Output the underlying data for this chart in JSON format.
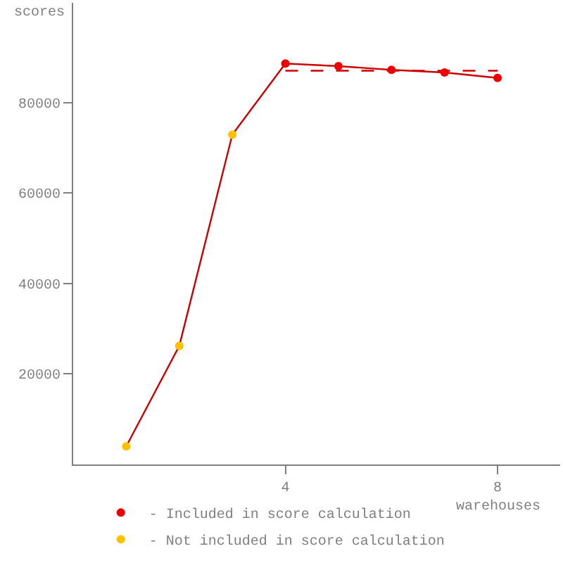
{
  "chart_data": {
    "type": "line",
    "xlabel": "warehouses",
    "ylabel": "scores",
    "xlim": [
      0,
      9.18
    ],
    "ylim": [
      0,
      102000
    ],
    "xticks": [
      4,
      8
    ],
    "yticks": [
      20000,
      40000,
      60000,
      80000
    ],
    "legend": "bottom left",
    "series": [
      {
        "color": "#cc0000",
        "marker": "none",
        "x": [
          1,
          2,
          3,
          4,
          5,
          6,
          7,
          8
        ],
        "values": [
          4000,
          26200,
          72900,
          88600,
          88000,
          87200,
          86600,
          85400
        ]
      },
      {
        "type": "line",
        "color": "#cc0000",
        "marker": "none",
        "line_style": "dashed",
        "x": [
          4,
          8
        ],
        "values": [
          87000,
          87000
        ]
      },
      {
        "type": "scatter",
        "name": "- Included in score calculation",
        "color": "#ee0000",
        "marker": "circle",
        "x": [
          4,
          5,
          6,
          7,
          8
        ],
        "values": [
          88600,
          88000,
          87200,
          86600,
          85400
        ]
      },
      {
        "type": "scatter",
        "name": "- Not included in score calculation",
        "color": "#ffc000",
        "marker": "circle",
        "x": [
          1,
          2,
          3
        ],
        "values": [
          4000,
          26200,
          72900
        ]
      }
    ]
  }
}
